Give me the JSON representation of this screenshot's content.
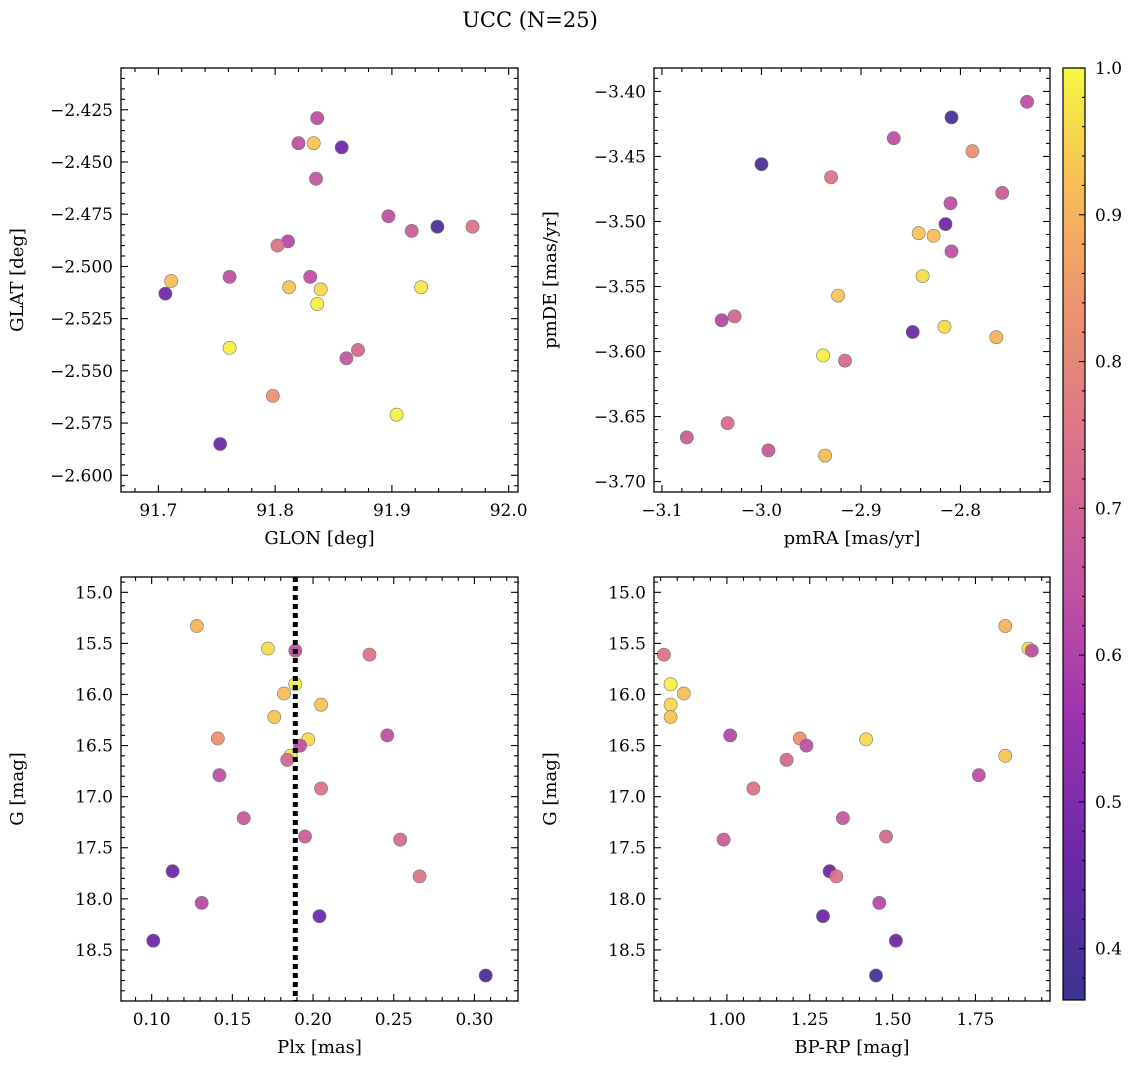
{
  "chart_data": {
    "type": "scatter",
    "title": "UCC (N=25)",
    "colorbar": {
      "colormap": "plasma",
      "range": [
        0.365,
        1.0
      ],
      "ticks": [
        0.4,
        0.5,
        0.6,
        0.7,
        0.8,
        0.9,
        1.0
      ],
      "tick_labels": [
        "0.4",
        "0.5",
        "0.6",
        "0.7",
        "0.8",
        "0.9",
        "1.0"
      ]
    },
    "panels": [
      {
        "id": "glon-glat",
        "xlabel": "GLON [deg]",
        "ylabel": "GLAT [deg]",
        "xlim": [
          91.668,
          92.008
        ],
        "ylim": [
          -2.608,
          -2.405
        ],
        "y_inverted": false,
        "xticks": [
          91.7,
          91.8,
          91.9,
          92.0
        ],
        "xtick_labels": [
          "91.7",
          "91.8",
          "91.9",
          "92.0"
        ],
        "yticks": [
          -2.425,
          -2.45,
          -2.475,
          -2.5,
          -2.525,
          -2.55,
          -2.575,
          -2.6
        ],
        "ytick_labels": [
          "−2.425",
          "−2.450",
          "−2.475",
          "−2.500",
          "−2.525",
          "−2.550",
          "−2.575",
          "−2.600"
        ],
        "points": [
          {
            "x": 91.836,
            "y": -2.429,
            "c": 0.64
          },
          {
            "x": 91.82,
            "y": -2.441,
            "c": 0.64
          },
          {
            "x": 91.833,
            "y": -2.441,
            "c": 0.93
          },
          {
            "x": 91.857,
            "y": -2.443,
            "c": 0.47
          },
          {
            "x": 91.835,
            "y": -2.458,
            "c": 0.66
          },
          {
            "x": 91.897,
            "y": -2.476,
            "c": 0.64
          },
          {
            "x": 91.939,
            "y": -2.481,
            "c": 0.4
          },
          {
            "x": 91.969,
            "y": -2.481,
            "c": 0.75
          },
          {
            "x": 91.917,
            "y": -2.483,
            "c": 0.68
          },
          {
            "x": 91.811,
            "y": -2.488,
            "c": 0.62
          },
          {
            "x": 91.802,
            "y": -2.49,
            "c": 0.75
          },
          {
            "x": 91.761,
            "y": -2.505,
            "c": 0.64
          },
          {
            "x": 91.83,
            "y": -2.505,
            "c": 0.64
          },
          {
            "x": 91.711,
            "y": -2.507,
            "c": 0.92
          },
          {
            "x": 91.812,
            "y": -2.51,
            "c": 0.93
          },
          {
            "x": 91.839,
            "y": -2.511,
            "c": 0.96
          },
          {
            "x": 91.925,
            "y": -2.51,
            "c": 0.98
          },
          {
            "x": 91.706,
            "y": -2.513,
            "c": 0.47
          },
          {
            "x": 91.836,
            "y": -2.518,
            "c": 0.99
          },
          {
            "x": 91.871,
            "y": -2.54,
            "c": 0.71
          },
          {
            "x": 91.861,
            "y": -2.544,
            "c": 0.66
          },
          {
            "x": 91.761,
            "y": -2.539,
            "c": 0.99
          },
          {
            "x": 91.798,
            "y": -2.562,
            "c": 0.83
          },
          {
            "x": 91.904,
            "y": -2.571,
            "c": 0.99
          },
          {
            "x": 91.753,
            "y": -2.585,
            "c": 0.47
          }
        ]
      },
      {
        "id": "pmra-pmde",
        "xlabel": "pmRA [mas/yr]",
        "ylabel": "pmDE [mas/yr]",
        "xlim": [
          -3.108,
          -2.71
        ],
        "ylim": [
          -3.708,
          -3.382
        ],
        "y_inverted": false,
        "xticks": [
          -3.1,
          -3.0,
          -2.9,
          -2.8
        ],
        "xtick_labels": [
          "−3.1",
          "−3.0",
          "−2.9",
          "−2.8"
        ],
        "yticks": [
          -3.4,
          -3.45,
          -3.5,
          -3.55,
          -3.6,
          -3.65,
          -3.7
        ],
        "ytick_labels": [
          "−3.40",
          "−3.45",
          "−3.50",
          "−3.55",
          "−3.60",
          "−3.65",
          "−3.70"
        ],
        "points": [
          {
            "x": -2.733,
            "y": -3.408,
            "c": 0.64
          },
          {
            "x": -2.809,
            "y": -3.42,
            "c": 0.4
          },
          {
            "x": -2.867,
            "y": -3.436,
            "c": 0.64
          },
          {
            "x": -2.788,
            "y": -3.446,
            "c": 0.83
          },
          {
            "x": -3.0,
            "y": -3.456,
            "c": 0.4
          },
          {
            "x": -2.93,
            "y": -3.466,
            "c": 0.75
          },
          {
            "x": -2.758,
            "y": -3.478,
            "c": 0.68
          },
          {
            "x": -2.81,
            "y": -3.486,
            "c": 0.64
          },
          {
            "x": -2.815,
            "y": -3.502,
            "c": 0.47
          },
          {
            "x": -2.842,
            "y": -3.509,
            "c": 0.93
          },
          {
            "x": -2.827,
            "y": -3.511,
            "c": 0.92
          },
          {
            "x": -2.809,
            "y": -3.523,
            "c": 0.64
          },
          {
            "x": -2.838,
            "y": -3.542,
            "c": 0.96
          },
          {
            "x": -2.923,
            "y": -3.557,
            "c": 0.93
          },
          {
            "x": -3.027,
            "y": -3.573,
            "c": 0.71
          },
          {
            "x": -3.04,
            "y": -3.576,
            "c": 0.62
          },
          {
            "x": -2.816,
            "y": -3.581,
            "c": 0.96
          },
          {
            "x": -2.848,
            "y": -3.585,
            "c": 0.47
          },
          {
            "x": -2.764,
            "y": -3.589,
            "c": 0.9
          },
          {
            "x": -2.938,
            "y": -3.603,
            "c": 0.99
          },
          {
            "x": -2.916,
            "y": -3.607,
            "c": 0.72
          },
          {
            "x": -3.075,
            "y": -3.666,
            "c": 0.68
          },
          {
            "x": -3.034,
            "y": -3.655,
            "c": 0.72
          },
          {
            "x": -2.993,
            "y": -3.676,
            "c": 0.67
          },
          {
            "x": -2.936,
            "y": -3.68,
            "c": 0.92
          }
        ]
      },
      {
        "id": "plx-g",
        "xlabel": "Plx [mas]",
        "ylabel": "G [mag]",
        "xlim": [
          0.081,
          0.327
        ],
        "ylim": [
          14.85,
          19.0
        ],
        "y_inverted": true,
        "xticks": [
          0.1,
          0.15,
          0.2,
          0.25,
          0.3
        ],
        "xtick_labels": [
          "0.10",
          "0.15",
          "0.20",
          "0.25",
          "0.30"
        ],
        "yticks": [
          15.0,
          15.5,
          16.0,
          16.5,
          17.0,
          17.5,
          18.0,
          18.5
        ],
        "ytick_labels": [
          "15.0",
          "15.5",
          "16.0",
          "16.5",
          "17.0",
          "17.5",
          "18.0",
          "18.5"
        ],
        "vline": {
          "x": 0.189,
          "style": "dotted"
        },
        "points": [
          {
            "x": 0.128,
            "y": 15.33,
            "c": 0.9
          },
          {
            "x": 0.172,
            "y": 15.55,
            "c": 0.96
          },
          {
            "x": 0.189,
            "y": 15.57,
            "c": 0.64
          },
          {
            "x": 0.235,
            "y": 15.61,
            "c": 0.75
          },
          {
            "x": 0.189,
            "y": 15.9,
            "c": 0.99
          },
          {
            "x": 0.182,
            "y": 15.99,
            "c": 0.92
          },
          {
            "x": 0.205,
            "y": 16.1,
            "c": 0.93
          },
          {
            "x": 0.176,
            "y": 16.22,
            "c": 0.93
          },
          {
            "x": 0.141,
            "y": 16.43,
            "c": 0.83
          },
          {
            "x": 0.197,
            "y": 16.44,
            "c": 0.96
          },
          {
            "x": 0.246,
            "y": 16.4,
            "c": 0.64
          },
          {
            "x": 0.192,
            "y": 16.5,
            "c": 0.64
          },
          {
            "x": 0.186,
            "y": 16.6,
            "c": 0.98
          },
          {
            "x": 0.184,
            "y": 16.64,
            "c": 0.71
          },
          {
            "x": 0.142,
            "y": 16.79,
            "c": 0.64
          },
          {
            "x": 0.205,
            "y": 16.92,
            "c": 0.75
          },
          {
            "x": 0.157,
            "y": 17.21,
            "c": 0.67
          },
          {
            "x": 0.195,
            "y": 17.39,
            "c": 0.68
          },
          {
            "x": 0.254,
            "y": 17.42,
            "c": 0.72
          },
          {
            "x": 0.113,
            "y": 17.73,
            "c": 0.47
          },
          {
            "x": 0.266,
            "y": 17.78,
            "c": 0.75
          },
          {
            "x": 0.131,
            "y": 18.04,
            "c": 0.62
          },
          {
            "x": 0.204,
            "y": 18.17,
            "c": 0.47
          },
          {
            "x": 0.101,
            "y": 18.41,
            "c": 0.47
          },
          {
            "x": 0.307,
            "y": 18.75,
            "c": 0.4
          }
        ]
      },
      {
        "id": "bprp-g",
        "xlabel": "BP-RP [mag]",
        "ylabel": "G [mag]",
        "xlim": [
          0.78,
          1.975
        ],
        "ylim": [
          14.85,
          19.0
        ],
        "y_inverted": true,
        "xticks": [
          1.0,
          1.25,
          1.5,
          1.75
        ],
        "xtick_labels": [
          "1.00",
          "1.25",
          "1.50",
          "1.75"
        ],
        "yticks": [
          15.0,
          15.5,
          16.0,
          16.5,
          17.0,
          17.5,
          18.0,
          18.5
        ],
        "ytick_labels": [
          "15.0",
          "15.5",
          "16.0",
          "16.5",
          "17.0",
          "17.5",
          "18.0",
          "18.5"
        ],
        "points": [
          {
            "x": 0.81,
            "y": 15.61,
            "c": 0.75
          },
          {
            "x": 0.83,
            "y": 15.9,
            "c": 0.99
          },
          {
            "x": 0.87,
            "y": 15.99,
            "c": 0.92
          },
          {
            "x": 0.83,
            "y": 16.1,
            "c": 0.96
          },
          {
            "x": 0.83,
            "y": 16.22,
            "c": 0.93
          },
          {
            "x": 1.84,
            "y": 15.33,
            "c": 0.9
          },
          {
            "x": 1.91,
            "y": 15.55,
            "c": 0.96
          },
          {
            "x": 1.92,
            "y": 15.57,
            "c": 0.64
          },
          {
            "x": 1.01,
            "y": 16.4,
            "c": 0.62
          },
          {
            "x": 1.22,
            "y": 16.43,
            "c": 0.83
          },
          {
            "x": 1.24,
            "y": 16.5,
            "c": 0.64
          },
          {
            "x": 1.42,
            "y": 16.44,
            "c": 0.96
          },
          {
            "x": 1.84,
            "y": 16.6,
            "c": 0.93
          },
          {
            "x": 1.18,
            "y": 16.64,
            "c": 0.71
          },
          {
            "x": 1.76,
            "y": 16.79,
            "c": 0.64
          },
          {
            "x": 1.08,
            "y": 16.92,
            "c": 0.75
          },
          {
            "x": 1.35,
            "y": 17.21,
            "c": 0.67
          },
          {
            "x": 0.99,
            "y": 17.42,
            "c": 0.68
          },
          {
            "x": 1.48,
            "y": 17.39,
            "c": 0.72
          },
          {
            "x": 1.31,
            "y": 17.73,
            "c": 0.47
          },
          {
            "x": 1.33,
            "y": 17.78,
            "c": 0.75
          },
          {
            "x": 1.46,
            "y": 18.04,
            "c": 0.62
          },
          {
            "x": 1.29,
            "y": 18.17,
            "c": 0.47
          },
          {
            "x": 1.51,
            "y": 18.41,
            "c": 0.47
          },
          {
            "x": 1.45,
            "y": 18.75,
            "c": 0.4
          }
        ]
      }
    ]
  }
}
